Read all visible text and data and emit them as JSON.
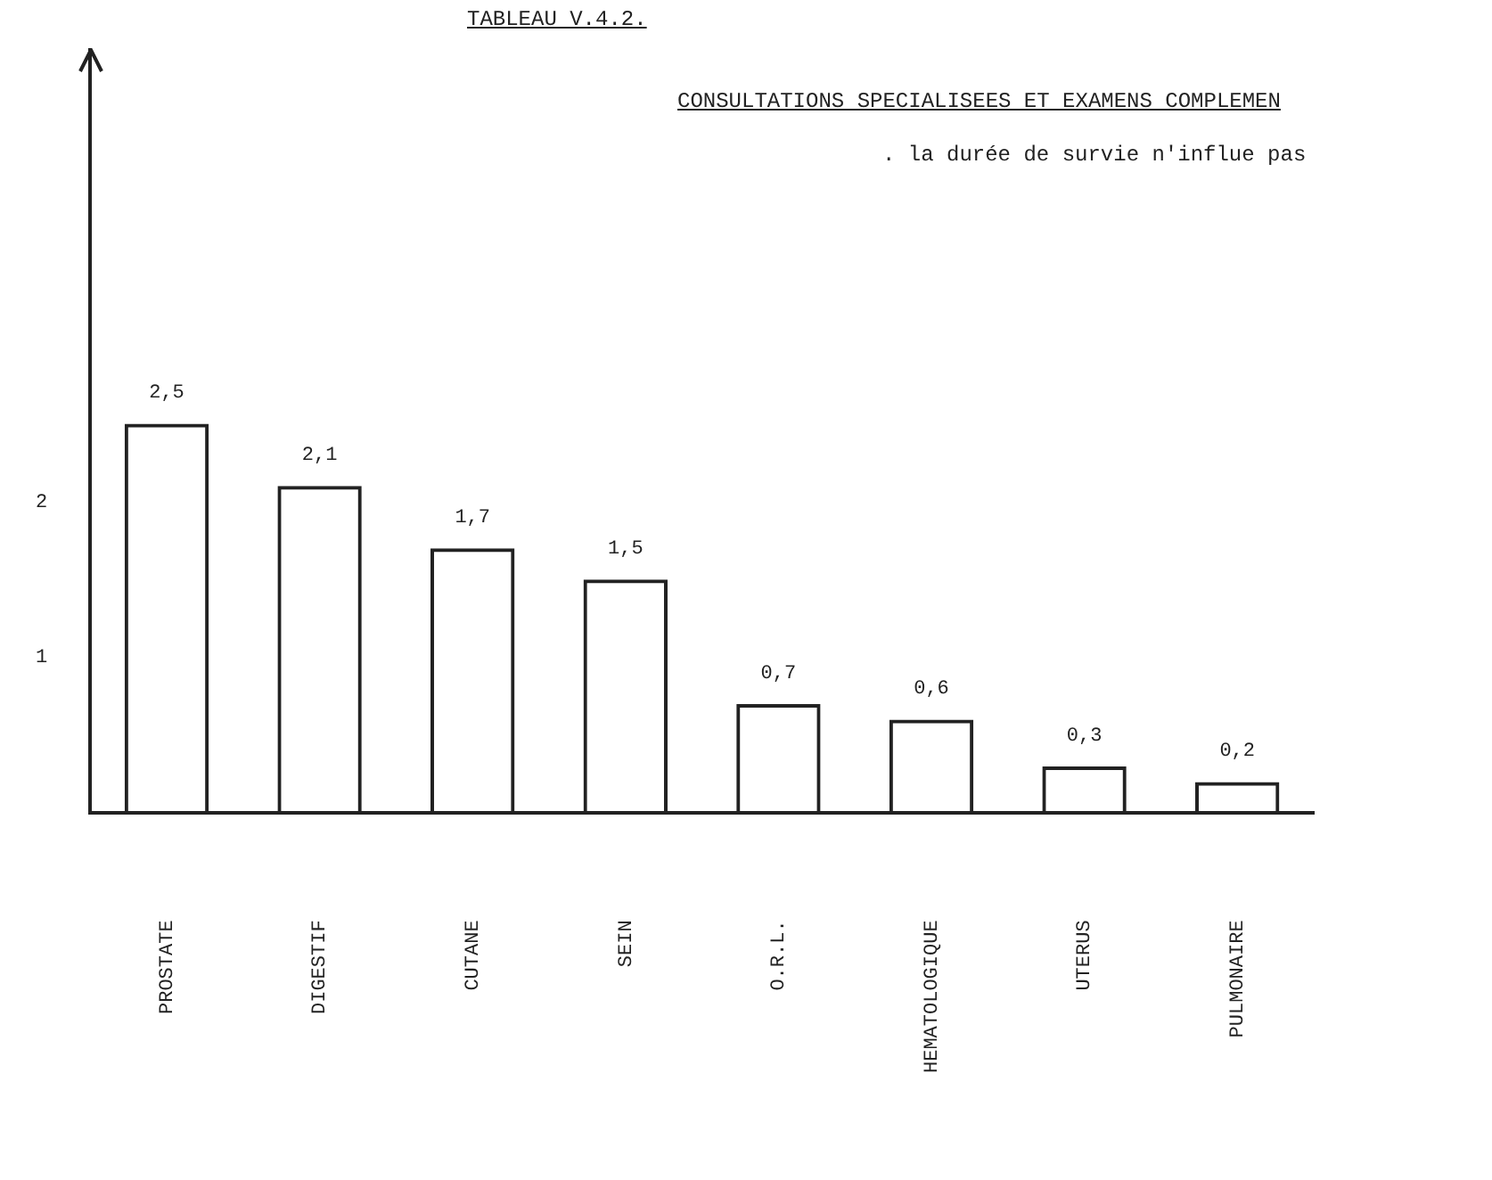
{
  "chart_data": {
    "type": "bar",
    "title": "TABLEAU V.4.2.",
    "subtitle": "CONSULTATIONS SPECIALISEES ET EXAMENS COMPLEMEN",
    "annotations": [
      ". la durée de survie n'influe pas"
    ],
    "categories": [
      "PROSTATE",
      "DIGESTIF",
      "CUTANE",
      "SEIN",
      "O.R.L.",
      "HEMATOLOGIQUE",
      "UTERUS",
      "PULMONAIRE"
    ],
    "values": [
      2.5,
      2.1,
      1.7,
      1.5,
      0.7,
      0.6,
      0.3,
      0.2
    ],
    "value_labels": [
      "2,5",
      "2,1",
      "1,7",
      "1,5",
      "0,7",
      "0,6",
      "0,3",
      "0,2"
    ],
    "color": "#222222",
    "ylim": [
      0,
      4.9
    ],
    "yticks": [
      1,
      2
    ],
    "grid": false,
    "legend": false
  }
}
